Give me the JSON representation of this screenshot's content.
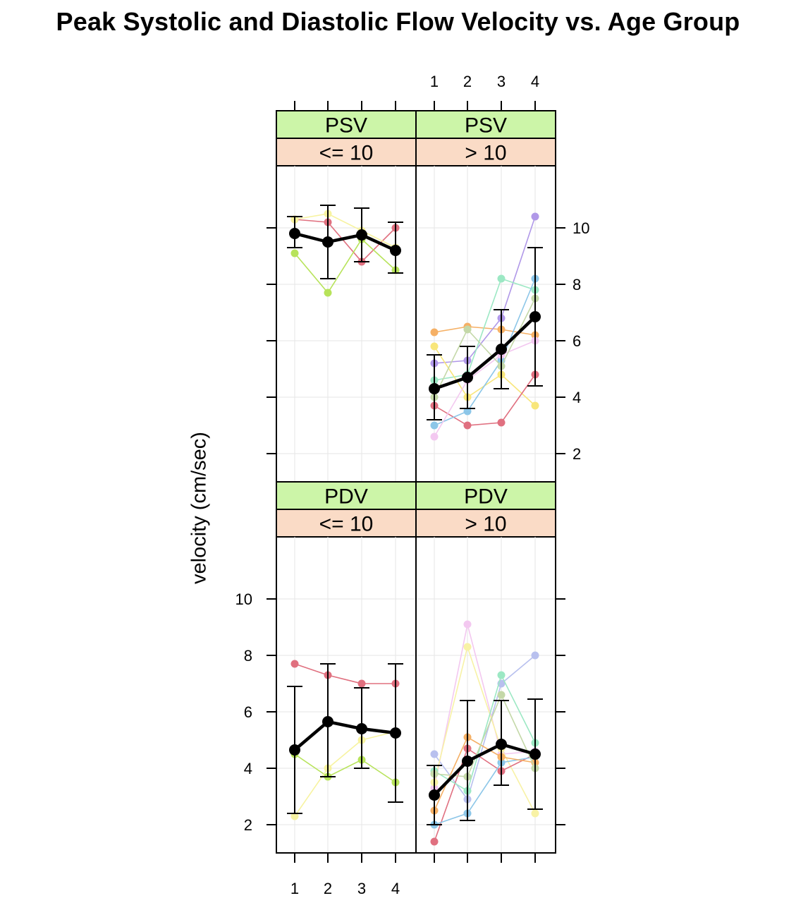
{
  "chart_data": {
    "type": "line",
    "title": "Peak Systolic and Diastolic Flow Velocity vs. Age Group",
    "ylabel": "velocity (cm/sec)",
    "x": [
      1,
      2,
      3,
      4
    ],
    "x_tick_labels": [
      "1",
      "2",
      "3",
      "4"
    ],
    "y_ticks": [
      2,
      4,
      6,
      8,
      10
    ],
    "y_tick_labels": [
      "2",
      "4",
      "6",
      "8",
      "10"
    ],
    "ylim": [
      1,
      12.2
    ],
    "grid": true,
    "strip_colors": {
      "measure": "#ccf5a8",
      "age": "#fadbc6"
    },
    "mean_color": "#000000",
    "panels": [
      {
        "id": "psv-le10",
        "measure": "PSV",
        "age_group": "<= 10",
        "mean": {
          "values": [
            9.8,
            9.5,
            9.75,
            9.2
          ],
          "lower": [
            9.3,
            8.2,
            8.8,
            8.4
          ],
          "upper": [
            10.4,
            10.8,
            10.7,
            10.2
          ]
        },
        "series": [
          {
            "color": "#e0707f",
            "values": [
              10.3,
              10.2,
              8.8,
              10.0
            ]
          },
          {
            "color": "#b7e35a",
            "values": [
              9.1,
              7.7,
              9.6,
              8.5
            ]
          },
          {
            "color": "#f7f3a0",
            "values": [
              10.3,
              10.5,
              9.9,
              9.3
            ]
          }
        ]
      },
      {
        "id": "psv-gt10",
        "measure": "PSV",
        "age_group": "> 10",
        "mean": {
          "values": [
            4.3,
            4.7,
            5.7,
            6.85
          ],
          "lower": [
            3.2,
            3.6,
            4.3,
            4.4
          ],
          "upper": [
            5.5,
            5.8,
            7.1,
            9.3
          ]
        },
        "series": [
          {
            "color": "#f5b065",
            "values": [
              6.3,
              6.5,
              6.4,
              6.2
            ]
          },
          {
            "color": "#b098e8",
            "values": [
              5.2,
              5.3,
              6.8,
              10.4
            ]
          },
          {
            "color": "#9ce8c4",
            "values": [
              4.6,
              4.8,
              8.2,
              7.8
            ]
          },
          {
            "color": "#f8e67a",
            "values": [
              5.8,
              4.0,
              4.8,
              3.7
            ]
          },
          {
            "color": "#e07080",
            "values": [
              3.7,
              3.0,
              3.1,
              4.8
            ]
          },
          {
            "color": "#8cc6e8",
            "values": [
              3.0,
              3.5,
              5.3,
              8.2
            ]
          },
          {
            "color": "#f3c8f0",
            "values": [
              2.6,
              4.6,
              5.5,
              6.0
            ]
          },
          {
            "color": "#c4d8a8",
            "values": [
              4.0,
              6.4,
              5.1,
              7.5
            ]
          }
        ]
      },
      {
        "id": "pdv-le10",
        "measure": "PDV",
        "age_group": "<= 10",
        "mean": {
          "values": [
            4.65,
            5.65,
            5.4,
            5.25
          ],
          "lower": [
            2.4,
            3.7,
            4.0,
            2.8
          ],
          "upper": [
            6.9,
            7.7,
            6.85,
            7.7
          ]
        },
        "series": [
          {
            "color": "#e0707f",
            "values": [
              7.7,
              7.3,
              7.0,
              7.0
            ]
          },
          {
            "color": "#b7e35a",
            "values": [
              4.5,
              3.7,
              4.3,
              3.5
            ]
          },
          {
            "color": "#f7f3a0",
            "values": [
              2.3,
              4.0,
              5.0,
              5.3
            ]
          }
        ]
      },
      {
        "id": "pdv-gt10",
        "measure": "PDV",
        "age_group": "> 10",
        "mean": {
          "values": [
            3.05,
            4.25,
            4.85,
            4.5
          ],
          "lower": [
            2.0,
            2.15,
            3.4,
            2.55
          ],
          "upper": [
            4.1,
            6.4,
            6.4,
            6.45
          ]
        },
        "series": [
          {
            "color": "#b8c0ee",
            "values": [
              4.5,
              2.9,
              7.0,
              8.0
            ]
          },
          {
            "color": "#f3c8f0",
            "values": [
              3.3,
              9.1,
              4.5,
              4.6
            ]
          },
          {
            "color": "#f8f2a6",
            "values": [
              3.5,
              8.3,
              4.7,
              2.4
            ]
          },
          {
            "color": "#e07080",
            "values": [
              1.4,
              4.7,
              3.9,
              4.5
            ]
          },
          {
            "color": "#8cc6e8",
            "values": [
              2.0,
              2.4,
              4.2,
              4.4
            ]
          },
          {
            "color": "#9ce8c4",
            "values": [
              3.9,
              3.2,
              7.3,
              4.9
            ]
          },
          {
            "color": "#f5b065",
            "values": [
              2.5,
              5.1,
              4.4,
              4.2
            ]
          },
          {
            "color": "#c4d8a8",
            "values": [
              3.8,
              3.7,
              6.6,
              4.0
            ]
          }
        ]
      }
    ]
  }
}
